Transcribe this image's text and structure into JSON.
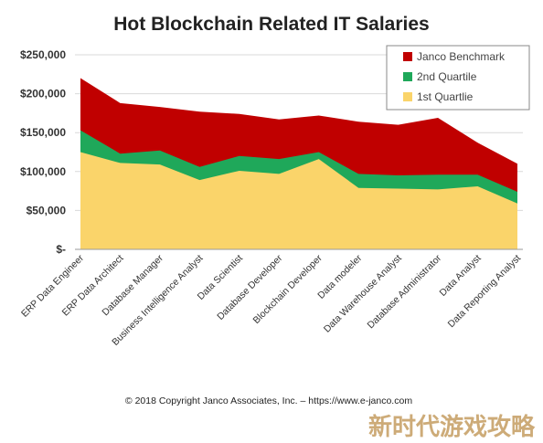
{
  "chart_data": {
    "type": "area",
    "stacked": false,
    "title": "Hot Blockchain Related IT Salaries",
    "xlabel": "",
    "ylabel": "",
    "ylim": [
      0,
      250000
    ],
    "yticks": [
      0,
      50000,
      100000,
      150000,
      200000,
      250000
    ],
    "ytick_labels": [
      "$-",
      "$50,000",
      "$100,000",
      "$150,000",
      "$200,000",
      "$250,000"
    ],
    "grid": true,
    "legend_position": "top-right",
    "categories": [
      "ERP Data Engineer",
      "ERP Data Architect",
      "Database Manager",
      "Business Intelligence Analyst",
      "Data Scientist",
      "Database Developer",
      "Blockchain Developer",
      "Data modeler",
      "Data Warehouse Analyst",
      "Database Administrator",
      "Data Analyst",
      "Data Reporting Analyst"
    ],
    "series": [
      {
        "name": "Janco Benchmark",
        "color": "#c00000",
        "values": [
          220000,
          188000,
          183000,
          177000,
          174000,
          167000,
          172000,
          164000,
          160000,
          169000,
          137000,
          110000
        ]
      },
      {
        "name": "2nd Quartile",
        "color": "#1fa85a",
        "values": [
          153000,
          123000,
          127000,
          106000,
          120000,
          116000,
          125000,
          97000,
          95000,
          96000,
          96000,
          74000
        ]
      },
      {
        "name": "1st Quartlie",
        "color": "#fad46a",
        "values": [
          125000,
          111000,
          109000,
          89000,
          101000,
          97000,
          116000,
          79000,
          78000,
          77000,
          81000,
          59000
        ]
      }
    ]
  },
  "footer": {
    "copyright": "© 2018 Copyright Janco Associates, Inc. – https://www.e-janco.com"
  },
  "watermark": {
    "text": "新时代游戏攻略"
  }
}
